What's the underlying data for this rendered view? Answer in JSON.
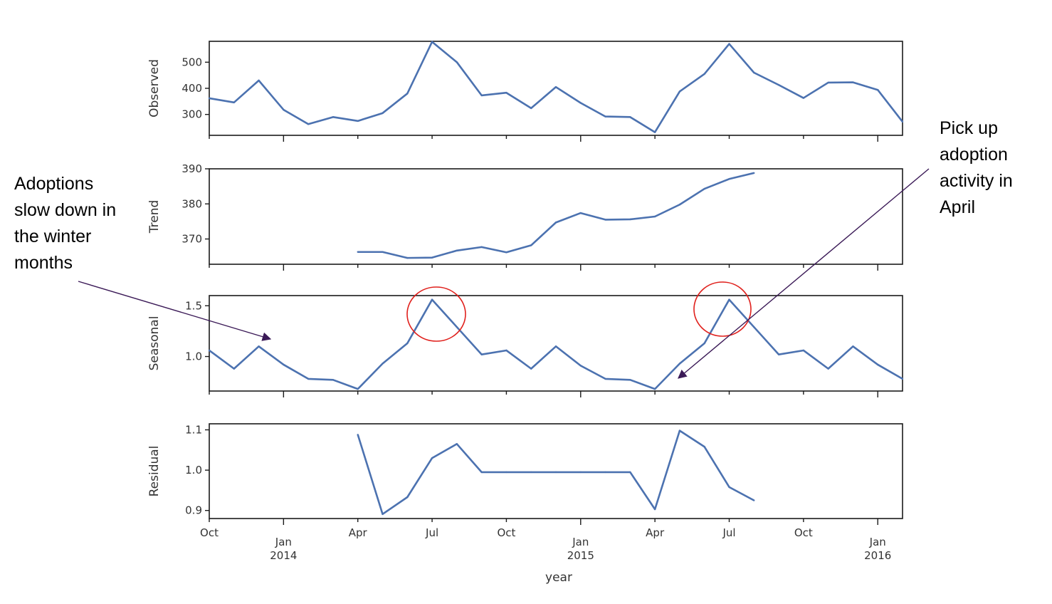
{
  "chart_data": {
    "type": "line",
    "xlabel": "year",
    "x_ticks": [
      {
        "date": "2013-10",
        "label": "Oct",
        "sub": ""
      },
      {
        "date": "2014-01",
        "label": "Jan",
        "sub": "2014"
      },
      {
        "date": "2014-04",
        "label": "Apr",
        "sub": ""
      },
      {
        "date": "2014-07",
        "label": "Jul",
        "sub": ""
      },
      {
        "date": "2014-10",
        "label": "Oct",
        "sub": ""
      },
      {
        "date": "2015-01",
        "label": "Jan",
        "sub": "2015"
      },
      {
        "date": "2015-04",
        "label": "Apr",
        "sub": ""
      },
      {
        "date": "2015-07",
        "label": "Jul",
        "sub": ""
      },
      {
        "date": "2015-10",
        "label": "Oct",
        "sub": ""
      },
      {
        "date": "2016-01",
        "label": "Jan",
        "sub": "2016"
      }
    ],
    "xlim": [
      "2013-10",
      "2016-02"
    ],
    "dates": [
      "2013-10",
      "2013-11",
      "2013-12",
      "2014-01",
      "2014-02",
      "2014-03",
      "2014-04",
      "2014-05",
      "2014-06",
      "2014-07",
      "2014-08",
      "2014-09",
      "2014-10",
      "2014-11",
      "2014-12",
      "2015-01",
      "2015-02",
      "2015-03",
      "2015-04",
      "2015-05",
      "2015-06",
      "2015-07",
      "2015-08",
      "2015-09",
      "2015-10",
      "2015-11",
      "2015-12",
      "2016-01",
      "2016-02"
    ],
    "line_color": "#4c72b0",
    "panels": [
      {
        "ylabel": "Observed",
        "ylim": [
          220,
          580
        ],
        "yticks": [
          300,
          400,
          500
        ],
        "ytick_labels": [
          "300",
          "400",
          "500"
        ],
        "values": [
          362,
          346,
          430,
          318,
          263,
          290,
          275,
          305,
          380,
          578,
          500,
          373,
          383,
          324,
          405,
          344,
          292,
          290,
          232,
          388,
          455,
          570,
          460,
          413,
          363,
          422,
          423,
          394,
          272
        ]
      },
      {
        "ylabel": "Trend",
        "ylim": [
          362.8,
          390
        ],
        "yticks": [
          370,
          380,
          390
        ],
        "ytick_labels": [
          "370",
          "380",
          "390"
        ],
        "values": [
          null,
          null,
          null,
          null,
          null,
          null,
          366.3,
          366.3,
          364.6,
          364.7,
          366.7,
          367.7,
          366.2,
          368.2,
          374.7,
          377.4,
          375.5,
          375.6,
          376.4,
          379.8,
          384.3,
          387.1,
          388.8,
          null,
          null,
          null,
          null,
          null,
          null
        ]
      },
      {
        "ylabel": "Seasonal",
        "ylim": [
          0.66,
          1.6
        ],
        "yticks": [
          1.0,
          1.5
        ],
        "ytick_labels": [
          "1.0",
          "1.5"
        ],
        "values": [
          1.06,
          0.88,
          1.1,
          0.92,
          0.78,
          0.77,
          0.68,
          0.93,
          1.13,
          1.56,
          1.29,
          1.02,
          1.06,
          0.88,
          1.1,
          0.91,
          0.78,
          0.77,
          0.68,
          0.93,
          1.13,
          1.56,
          1.29,
          1.02,
          1.06,
          0.88,
          1.1,
          0.92,
          0.78
        ]
      },
      {
        "ylabel": "Residual",
        "ylim": [
          0.88,
          1.115
        ],
        "yticks": [
          0.9,
          1.0,
          1.1
        ],
        "ytick_labels": [
          "0.9",
          "1.0",
          "1.1"
        ],
        "values": [
          null,
          null,
          null,
          null,
          null,
          null,
          1.088,
          0.891,
          0.933,
          1.03,
          1.065,
          0.995,
          0.995,
          0.995,
          0.995,
          0.995,
          0.995,
          0.995,
          0.903,
          1.098,
          1.058,
          0.958,
          0.925,
          null,
          null,
          null,
          null,
          null,
          null
        ]
      }
    ],
    "annotations": [
      {
        "lines": [
          "Adoptions",
          "slow down in",
          "the winter",
          "months"
        ]
      },
      {
        "lines": [
          "Pick up",
          "adoption",
          "activity in",
          "April"
        ]
      }
    ],
    "highlight_color": "#e0201c",
    "arrow_color": "#3b1a57"
  }
}
